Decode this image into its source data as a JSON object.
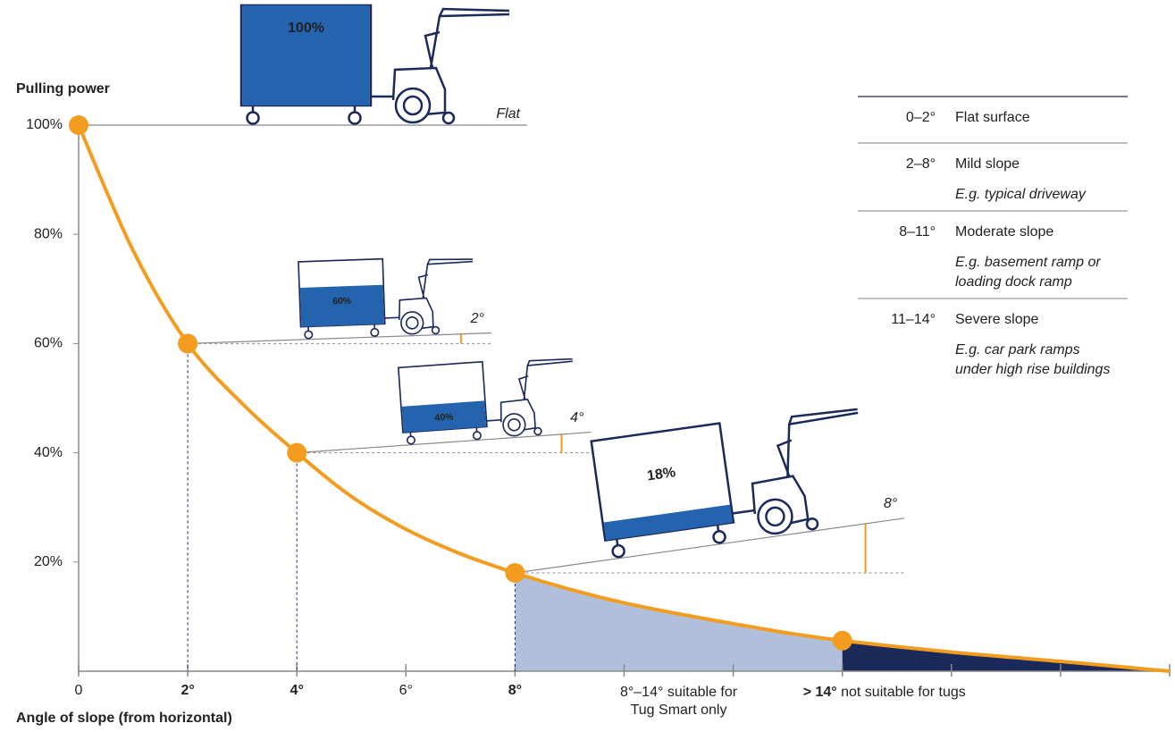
{
  "chart_data": {
    "type": "line",
    "y_title": "Pulling power",
    "x_title": "Angle of slope (from horizontal)",
    "xlim": [
      0,
      20
    ],
    "ylim": [
      0,
      100
    ],
    "xticks": [
      0,
      {
        "value": 2,
        "label": "2°",
        "color": "#f39c1f"
      },
      {
        "value": 4,
        "label": "4°",
        "color": "#f39c1f"
      },
      {
        "value": 6,
        "label": "6°"
      },
      {
        "value": 8,
        "label": "8°",
        "color": "#f39c1f"
      },
      {
        "value": 10,
        "label": null
      },
      {
        "value": 12,
        "label": null
      },
      {
        "value": 14,
        "label": null
      },
      {
        "value": 16,
        "label": null
      },
      {
        "value": 18,
        "label": null
      },
      {
        "value": 20,
        "label": null
      }
    ],
    "yticks": [
      {
        "value": 20,
        "label": "20%"
      },
      {
        "value": 40,
        "label": "40%"
      },
      {
        "value": 60,
        "label": "60%"
      },
      {
        "value": 80,
        "label": "80%"
      },
      {
        "value": 100,
        "label": "100%"
      }
    ],
    "color": "#f39c1f",
    "curve": {
      "x": [
        0,
        1,
        2,
        3,
        4,
        5,
        6,
        7,
        8,
        9,
        10,
        11,
        12,
        13,
        14,
        16,
        18,
        20
      ],
      "values": [
        100,
        77,
        60,
        49,
        40,
        32,
        26,
        21.5,
        18,
        15,
        12.5,
        10.5,
        8.7,
        7,
        5.6,
        3.5,
        1.8,
        0
      ]
    },
    "points": {
      "x": [
        0,
        2,
        4,
        8,
        14
      ],
      "values": [
        100,
        60,
        40,
        18,
        5.6
      ]
    },
    "zones": [
      {
        "from": 8,
        "to": 14,
        "color": "#b0c0dc",
        "label": [
          "8°–14° suitable for",
          "Tug Smart only"
        ]
      },
      {
        "from": 14,
        "to": 20,
        "color": "#1b2a5a",
        "label_bold": "> 14°",
        "label": " not suitable for tugs"
      }
    ],
    "illustrations": [
      {
        "label": "100%",
        "value": 100,
        "slope": {
          "value": 0,
          "label": "Flat"
        }
      },
      {
        "label": "60%",
        "value": 60,
        "slope": {
          "value": 2,
          "label": "2°"
        }
      },
      {
        "label": "40%",
        "value": 40,
        "slope": {
          "value": 4,
          "label": "4°"
        }
      },
      {
        "label": "18%",
        "value": 18,
        "slope": {
          "value": 8,
          "label": "8°"
        }
      }
    ],
    "box_color": "#2463ad",
    "slope_table": [
      {
        "range": "0–2°",
        "name": "Flat surface"
      },
      {
        "range": "2–8°",
        "name": "Mild slope",
        "example": [
          "E.g. typical driveway"
        ]
      },
      {
        "range": "8–11°",
        "name": "Moderate slope",
        "example": [
          "E.g. basement ramp or",
          "loading dock ramp"
        ]
      },
      {
        "range": "11–14°",
        "name": "Severe slope",
        "example": [
          "E.g. car park ramps",
          "under high rise buildings"
        ]
      }
    ]
  }
}
